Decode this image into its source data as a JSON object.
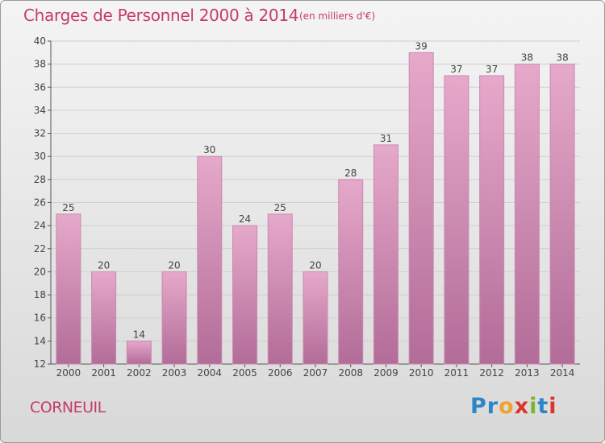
{
  "header": {
    "title": "Charges de Personnel 2000 à 2014",
    "subtitle": "(en milliers d'€)"
  },
  "footer": {
    "commune": "CORNEUIL",
    "logo": "Proxiti"
  },
  "colors": {
    "accent": "#c63a6e",
    "bar_top": "#e6a9ca",
    "bar_bottom": "#b26c98",
    "bar_edge": "#c98ab0"
  },
  "chart_data": {
    "type": "bar",
    "categories": [
      "2000",
      "2001",
      "2002",
      "2003",
      "2004",
      "2005",
      "2006",
      "2007",
      "2008",
      "2009",
      "2010",
      "2011",
      "2012",
      "2013",
      "2014"
    ],
    "values": [
      25,
      20,
      14,
      20,
      30,
      24,
      25,
      20,
      28,
      31,
      39,
      37,
      37,
      38,
      38
    ],
    "title": "Charges de Personnel 2000 à 2014",
    "subtitle": "(en milliers d'€)",
    "xlabel": "",
    "ylabel": "",
    "ylim": [
      12,
      40
    ],
    "yticks": [
      12,
      14,
      16,
      18,
      20,
      22,
      24,
      26,
      28,
      30,
      32,
      34,
      36,
      38,
      40
    ],
    "grid": true
  }
}
